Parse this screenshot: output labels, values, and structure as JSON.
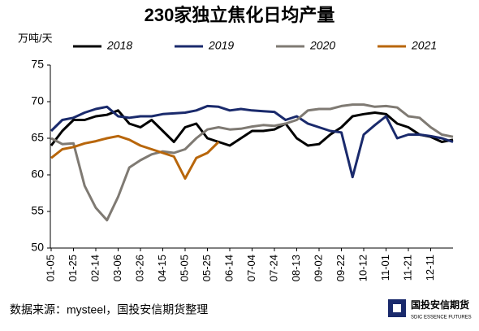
{
  "chart_data": {
    "type": "line",
    "title": "230家独立焦化日均产量",
    "y_label": "万吨/天",
    "categories": [
      "01-05",
      null,
      "01-25",
      null,
      "02-14",
      null,
      "03-06",
      null,
      "03-26",
      null,
      "04-15",
      null,
      "05-05",
      null,
      "05-25",
      null,
      "06-14",
      null,
      "07-04",
      null,
      "07-24",
      null,
      "08-13",
      null,
      "09-02",
      null,
      "09-22",
      null,
      "10-12",
      null,
      "11-01",
      null,
      "11-21",
      null,
      "12-11",
      null,
      null
    ],
    "series": [
      {
        "name": "2018",
        "color": "#000000",
        "values": [
          64,
          66,
          67.5,
          67.5,
          68,
          68.2,
          68.8,
          67,
          66.5,
          67.5,
          66,
          64.5,
          66.5,
          67,
          65,
          64.5,
          64,
          65,
          66,
          66,
          66.2,
          67,
          65,
          64,
          64.2,
          65.5,
          66.5,
          68,
          68.3,
          68.5,
          68.3,
          67,
          66.5,
          65.5,
          65.2,
          64.5,
          64.8
        ]
      },
      {
        "name": "2019",
        "color": "#1a2a6c",
        "values": [
          66,
          67.5,
          67.8,
          68.5,
          69,
          69.3,
          68,
          67.8,
          68,
          68,
          68.3,
          68.4,
          68.5,
          68.8,
          69.4,
          69.3,
          68.8,
          69,
          68.8,
          68.7,
          68.6,
          67.5,
          68,
          67,
          66.5,
          66,
          65.8,
          59.7,
          65.5,
          66.8,
          68,
          65,
          65.5,
          65.5,
          65.3,
          65,
          64.5
        ]
      },
      {
        "name": "2020",
        "color": "#7f7a73",
        "values": [
          65,
          64.2,
          64.3,
          58.5,
          55.5,
          53.8,
          57,
          61,
          62,
          62.8,
          63.2,
          63,
          63.5,
          65,
          66.2,
          66.5,
          66.2,
          66.3,
          66.6,
          66.8,
          66.7,
          67,
          67.5,
          68.8,
          69,
          69,
          69.4,
          69.6,
          69.6,
          69.3,
          69.4,
          69.2,
          68,
          67.8,
          66.5,
          65.5,
          65.2
        ]
      },
      {
        "name": "2021",
        "color": "#b8660b",
        "values": [
          62.3,
          63.5,
          63.8,
          64.3,
          64.6,
          65,
          65.3,
          64.8,
          64,
          63.5,
          63,
          62.5,
          59.5,
          62.3,
          63,
          64.5,
          null,
          null,
          null,
          null,
          null,
          null,
          null,
          null,
          null,
          null,
          null,
          null,
          null,
          null,
          null,
          null,
          null,
          null,
          null,
          null,
          null
        ]
      }
    ],
    "ylim": [
      50,
      75
    ],
    "yticks": [
      50,
      55,
      60,
      65,
      70,
      75
    ],
    "grid": false,
    "source": "数据来源：mysteel，国投安信期货整理",
    "logo": {
      "name": "国投安信期货",
      "sub": "SDIC ESSENCE FUTURES"
    }
  }
}
